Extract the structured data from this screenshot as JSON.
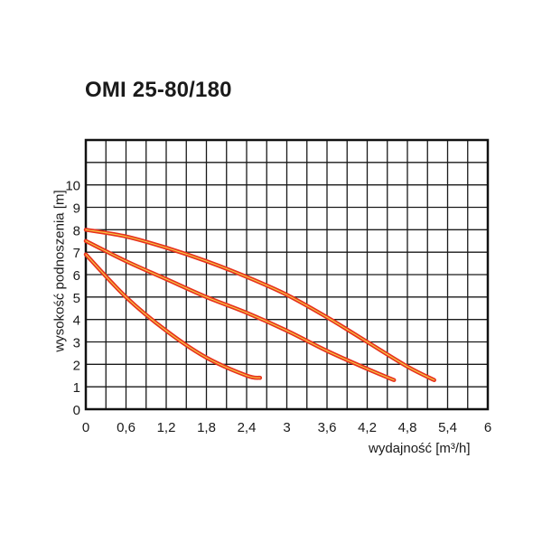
{
  "chart_data": {
    "type": "line",
    "title": "OMI 25-80/180",
    "xlabel": "wydajność [m³/h]",
    "ylabel": "wysokość podnoszenia [m]",
    "xlim": [
      0,
      6
    ],
    "ylim": [
      0,
      12
    ],
    "x_ticks": [
      "0",
      "0,6",
      "1,2",
      "1,8",
      "2,4",
      "3",
      "3,6",
      "4,2",
      "4,8",
      "5,4",
      "6"
    ],
    "y_ticks": [
      "0",
      "1",
      "2",
      "3",
      "4",
      "5",
      "6",
      "7",
      "8",
      "9",
      "10"
    ],
    "grid": true,
    "series": [
      {
        "x": [
          0,
          0.6,
          1.2,
          1.8,
          2.4,
          2.6
        ],
        "y": [
          6.9,
          5.0,
          3.5,
          2.3,
          1.5,
          1.4
        ]
      },
      {
        "x": [
          0,
          0.6,
          1.2,
          1.8,
          2.4,
          3.0,
          3.6,
          4.2,
          4.6
        ],
        "y": [
          7.5,
          6.6,
          5.8,
          5.0,
          4.3,
          3.5,
          2.6,
          1.8,
          1.3
        ]
      },
      {
        "x": [
          0,
          0.6,
          1.2,
          1.8,
          2.4,
          3.0,
          3.6,
          4.2,
          4.8,
          5.2
        ],
        "y": [
          8.0,
          7.7,
          7.2,
          6.6,
          5.9,
          5.1,
          4.1,
          3.0,
          1.9,
          1.3
        ]
      }
    ],
    "colors": {
      "curve": "#e8321e",
      "curve_core": "#f5c842",
      "grid": "#1a1a1a",
      "frame": "#111111"
    }
  }
}
